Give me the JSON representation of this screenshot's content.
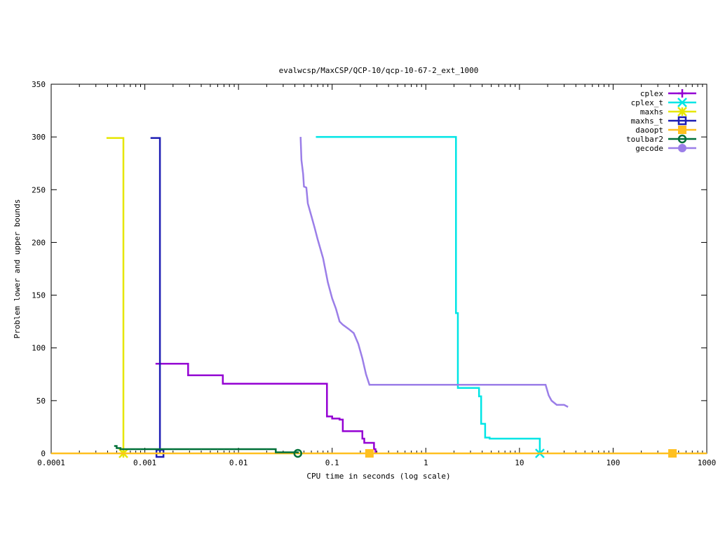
{
  "chart_data": {
    "type": "line",
    "title": "evalwcsp/MaxCSP/QCP-10/qcp-10-67-2_ext_1000",
    "xlabel": "CPU time in seconds (log scale)",
    "ylabel": "Problem lower and upper bounds",
    "x_scale": "log",
    "xlim": [
      0.0001,
      1000
    ],
    "ylim": [
      0,
      350
    ],
    "x_ticks": [
      0.0001,
      0.001,
      0.01,
      0.1,
      1,
      10,
      100,
      1000
    ],
    "x_tick_labels": [
      "0.0001",
      "0.001",
      "0.01",
      "0.1",
      "1",
      "10",
      "100",
      "1000"
    ],
    "y_ticks": [
      0,
      50,
      100,
      150,
      200,
      250,
      300,
      350
    ],
    "y_tick_labels": [
      "0",
      "50",
      "100",
      "150",
      "200",
      "250",
      "300",
      "350"
    ],
    "legend_position": "top-right",
    "series": [
      {
        "name": "cplex",
        "color": "#9400d3",
        "marker": "plus",
        "points": [
          [
            0.0013,
            85
          ],
          [
            0.0029,
            85
          ],
          [
            0.0029,
            74
          ],
          [
            0.0068,
            74
          ],
          [
            0.0068,
            66
          ],
          [
            0.088,
            66
          ],
          [
            0.088,
            35
          ],
          [
            0.1,
            35
          ],
          [
            0.1,
            33
          ],
          [
            0.12,
            33
          ],
          [
            0.12,
            32
          ],
          [
            0.13,
            32
          ],
          [
            0.13,
            21
          ],
          [
            0.21,
            21
          ],
          [
            0.21,
            14
          ],
          [
            0.22,
            14
          ],
          [
            0.22,
            10
          ],
          [
            0.28,
            10
          ],
          [
            0.28,
            4
          ],
          [
            0.29,
            4
          ],
          [
            0.29,
            0
          ]
        ],
        "marker_points": []
      },
      {
        "name": "cplex_t",
        "color": "#00e5e5",
        "marker": "x",
        "points": [
          [
            0.067,
            300
          ],
          [
            2.1,
            300
          ],
          [
            2.1,
            133
          ],
          [
            2.2,
            133
          ],
          [
            2.2,
            62
          ],
          [
            3.7,
            62
          ],
          [
            3.7,
            54
          ],
          [
            3.9,
            54
          ],
          [
            3.9,
            28
          ],
          [
            4.3,
            28
          ],
          [
            4.3,
            15
          ],
          [
            4.8,
            15
          ],
          [
            4.8,
            14
          ],
          [
            16.5,
            14
          ],
          [
            16.5,
            0
          ]
        ],
        "marker_points": [
          [
            16.5,
            0
          ]
        ]
      },
      {
        "name": "maxhs",
        "color": "#e6e600",
        "marker": "star",
        "points": [
          [
            0.00039,
            299
          ],
          [
            0.00059,
            299
          ],
          [
            0.00059,
            0
          ]
        ],
        "marker_points": [
          [
            0.00059,
            0
          ]
        ]
      },
      {
        "name": "maxhs_t",
        "color": "#1e1eb4",
        "marker": "square",
        "points": [
          [
            0.00115,
            299
          ],
          [
            0.00145,
            299
          ],
          [
            0.00145,
            0
          ]
        ],
        "marker_points": [
          [
            0.00145,
            0
          ]
        ]
      },
      {
        "name": "daoopt",
        "color": "#ffc020",
        "marker": "filled-square",
        "points": [
          [
            0.0001,
            0
          ],
          [
            1000,
            0
          ]
        ],
        "marker_points": [
          [
            0.25,
            0
          ],
          [
            430,
            0
          ]
        ]
      },
      {
        "name": "toulbar2",
        "color": "#007038",
        "marker": "circle",
        "points": [
          [
            0.00047,
            7
          ],
          [
            0.0005,
            7
          ],
          [
            0.0005,
            5
          ],
          [
            0.00055,
            5
          ],
          [
            0.00055,
            4
          ],
          [
            0.025,
            4
          ],
          [
            0.025,
            1
          ],
          [
            0.043,
            1
          ],
          [
            0.043,
            0
          ]
        ],
        "marker_points": [
          [
            0.043,
            0
          ]
        ]
      },
      {
        "name": "gecode",
        "color": "#9b7ee8",
        "marker": "filled-circle",
        "points": [
          [
            0.046,
            300
          ],
          [
            0.047,
            278
          ],
          [
            0.049,
            265
          ],
          [
            0.05,
            253
          ],
          [
            0.053,
            252
          ],
          [
            0.055,
            237
          ],
          [
            0.06,
            225
          ],
          [
            0.065,
            214
          ],
          [
            0.07,
            203
          ],
          [
            0.08,
            185
          ],
          [
            0.09,
            162
          ],
          [
            0.1,
            147
          ],
          [
            0.11,
            137
          ],
          [
            0.12,
            125
          ],
          [
            0.13,
            122
          ],
          [
            0.15,
            118
          ],
          [
            0.17,
            114
          ],
          [
            0.19,
            104
          ],
          [
            0.21,
            90
          ],
          [
            0.23,
            75
          ],
          [
            0.25,
            65
          ],
          [
            19,
            65
          ],
          [
            20.5,
            55
          ],
          [
            22,
            50
          ],
          [
            25,
            46
          ],
          [
            30,
            46
          ],
          [
            33,
            44
          ]
        ],
        "marker_points": []
      }
    ]
  }
}
